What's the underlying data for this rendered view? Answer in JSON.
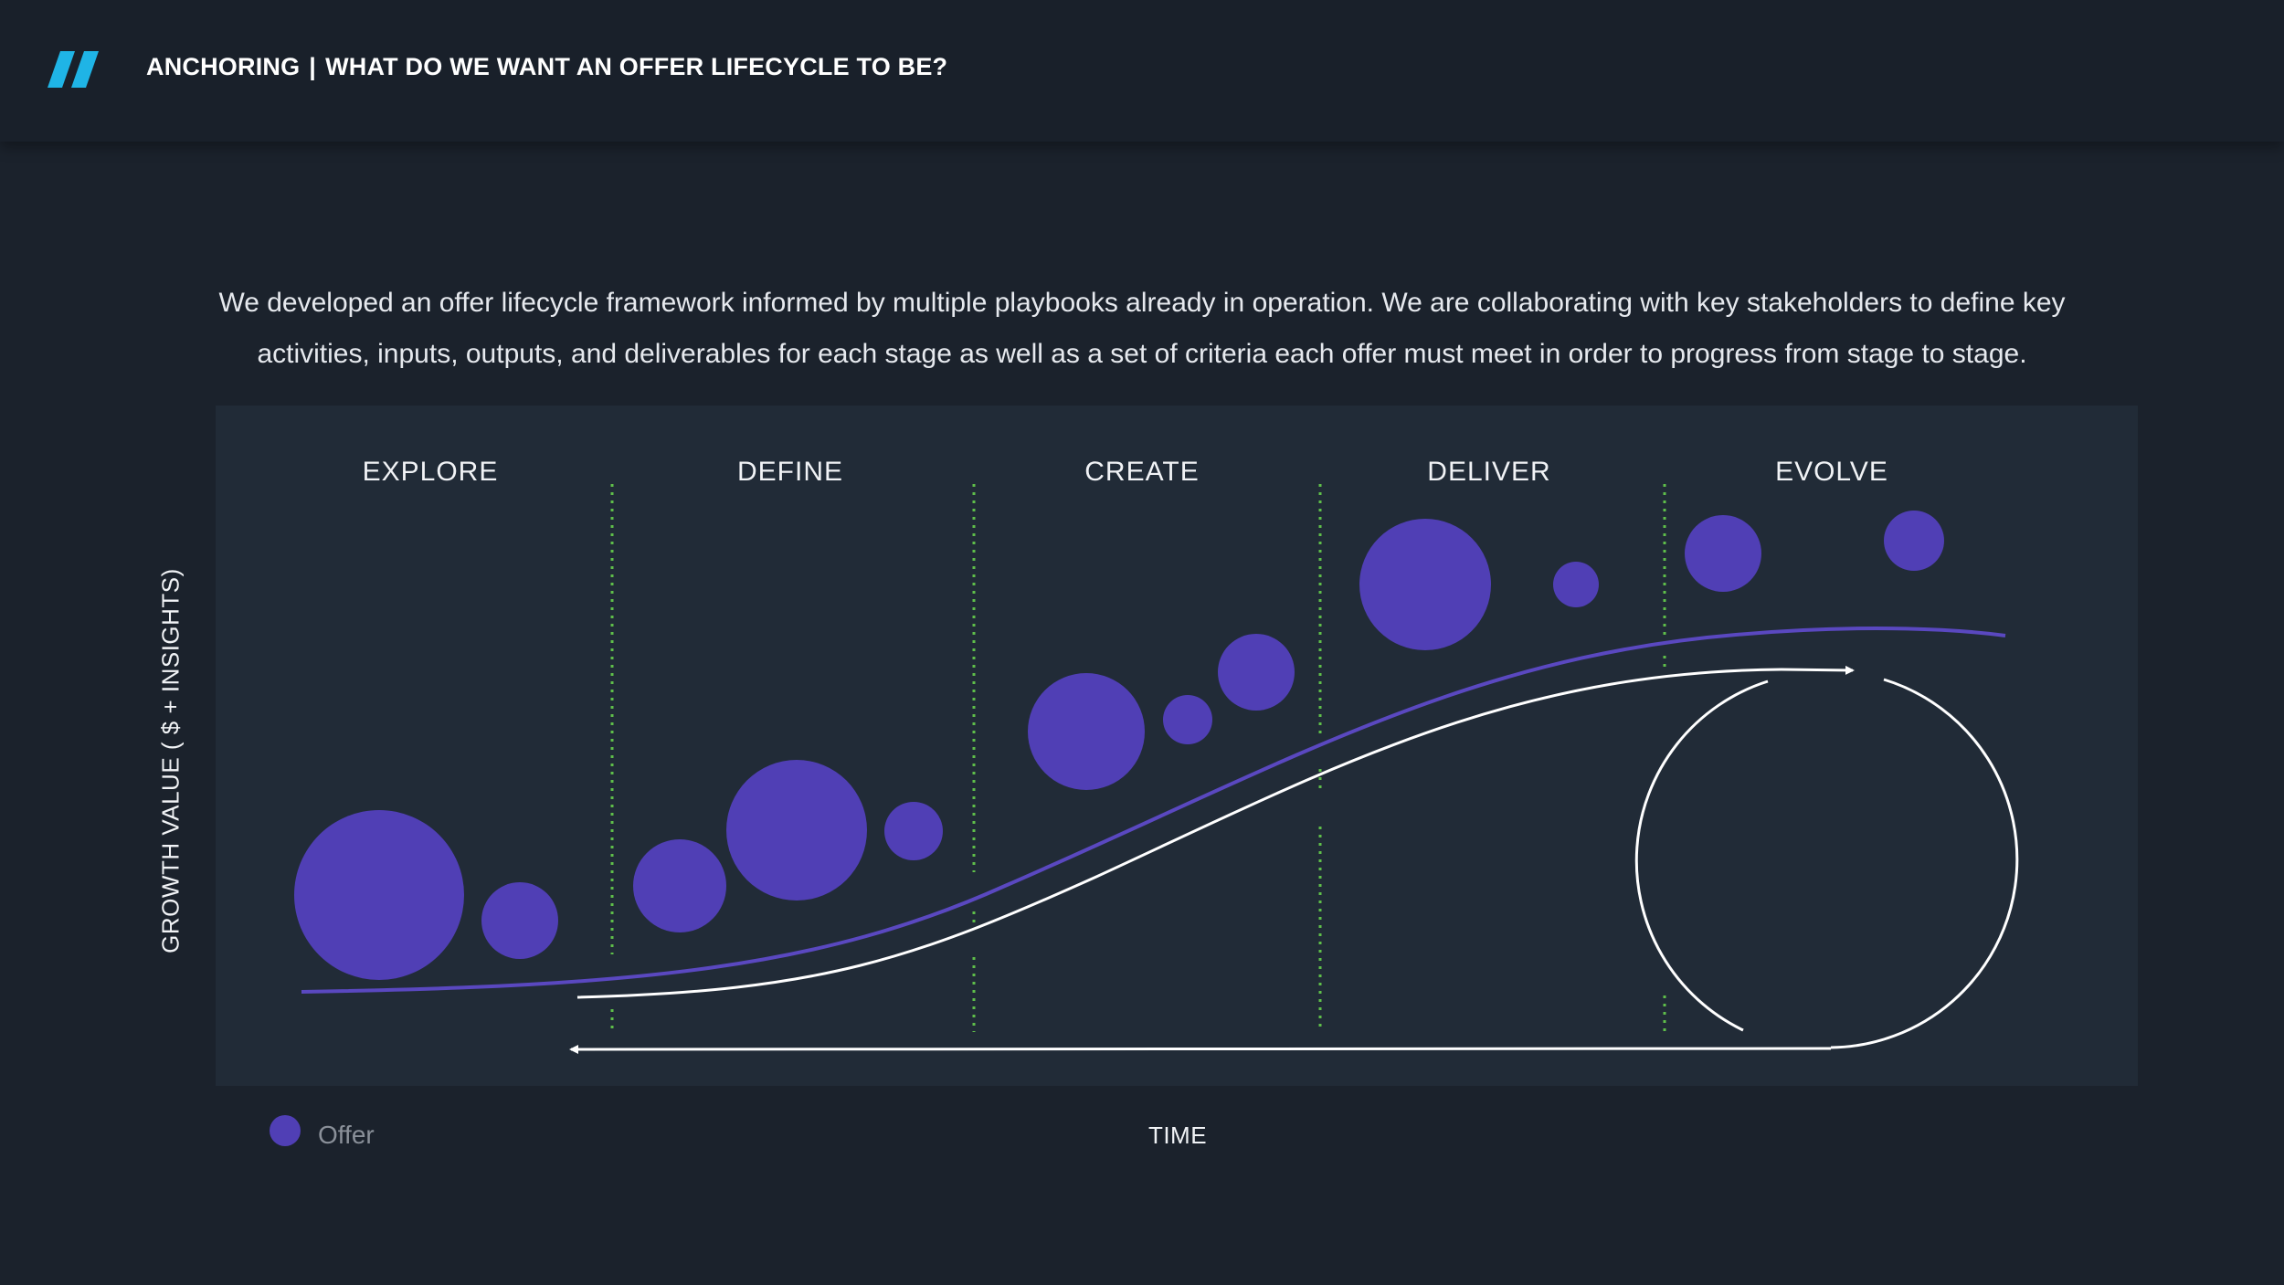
{
  "header": {
    "section": "ANCHORING",
    "separator": "|",
    "title": "WHAT DO WE WANT AN OFFER LIFECYCLE TO BE?",
    "logo_icon": "double-slash-logo",
    "accent_color": "#1fb4e6"
  },
  "intro": {
    "text": "We developed an offer lifecycle framework informed by multiple playbooks already in operation.  We are collaborating with key stakeholders to define key activities, inputs, outputs, and deliverables for each stage as well as a set of criteria each offer must meet in order to progress from stage to stage."
  },
  "diagram": {
    "stages": [
      "EXPLORE",
      "DEFINE",
      "CREATE",
      "DELIVER",
      "EVOLVE"
    ],
    "y_axis_label": "GROWTH VALUE ( $ + INSIGHTS)",
    "x_axis_label": "TIME",
    "legend": {
      "label": "Offer",
      "color": "#503fb5"
    },
    "colors": {
      "offer": "#503fb5",
      "growth_curve": "#5a48c0",
      "lifecycle_arrow": "#ffffff",
      "stage_divider": "#5fbf4a",
      "panel": "#212b37"
    }
  }
}
